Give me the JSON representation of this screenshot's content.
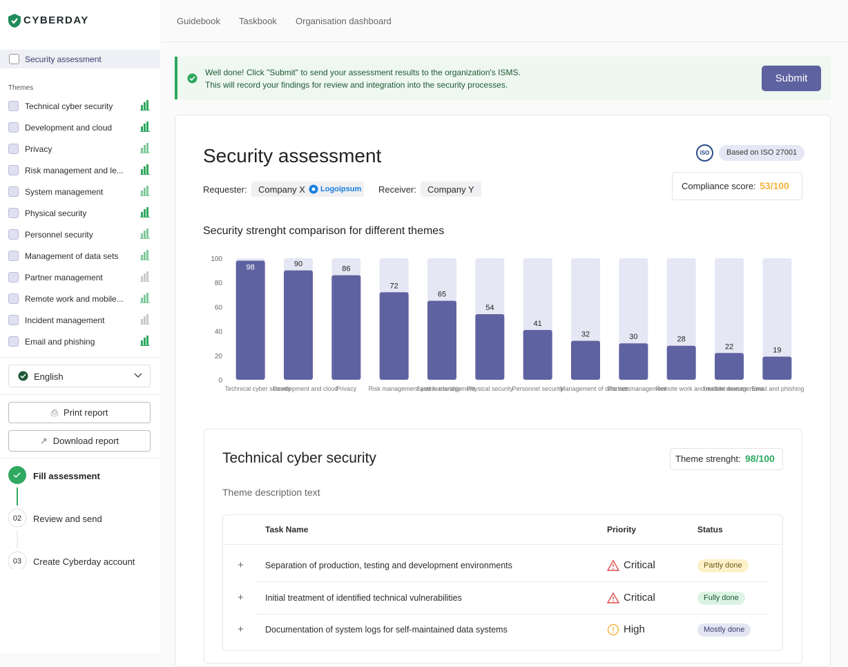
{
  "nav": {
    "logo": "CYBERDAY",
    "links": [
      "Guidebook",
      "Taskbook",
      "Organisation dashboard"
    ]
  },
  "sidebar": {
    "active": "Security assessment",
    "themes_label": "Themes",
    "themes": [
      "Technical cyber security",
      "Development and cloud",
      "Privacy",
      "Risk management and le...",
      "System management",
      "Physical security",
      "Personnel security",
      "Management of data sets",
      "Partner management",
      "Remote work and mobile...",
      "Incident management",
      "Email and phishing"
    ],
    "language": "English",
    "print": "Print report",
    "download": "Download report",
    "steps": [
      {
        "label": "Fill assessment"
      },
      {
        "number": "02",
        "label": "Review and send"
      },
      {
        "number": "03",
        "label": "Create Cyberday account"
      }
    ]
  },
  "banner": {
    "lines": [
      "Well done! Click \"Submit\" to send your assessment results to the organization's ISMS.",
      "This will record your findings for review and integration into the security processes."
    ],
    "button": "Submit"
  },
  "assessment": {
    "title": "Security assessment",
    "iso": "ISO",
    "badge": "Based on ISO 27001",
    "requester_label": "Requester:",
    "requester": "Company X",
    "requester_logo": "Logoipsum",
    "receiver_label": "Receiver:",
    "receiver": "Company Y",
    "compliance_label": "Compliance score:",
    "compliance_score": "53/100"
  },
  "chart_data": {
    "type": "bar",
    "title": "Security strenght comparison for different themes",
    "categories": [
      "Technical cyber security",
      "Development and cloud",
      "Privacy",
      "Risk management and leadership",
      "System management",
      "Physical security",
      "Personnel security",
      "Management of data sets",
      "Partner management",
      "Remote work and mobile devices",
      "Incident management",
      "Email and phishing"
    ],
    "values": [
      98,
      90,
      86,
      72,
      65,
      54,
      41,
      32,
      30,
      28,
      22,
      19
    ],
    "color": "#5f62a0",
    "track_color": "#e6e7f4",
    "ylim": [
      0,
      100
    ],
    "yticks": [
      0,
      20,
      40,
      60,
      80,
      100
    ]
  },
  "theme": {
    "title": "Technical cyber security",
    "strength_label": "Theme strenght:",
    "strength": "98/100",
    "description": "Theme description text",
    "table": {
      "headers": [
        "Task Name",
        "Priority",
        "Status"
      ],
      "rows": [
        [
          "Separation of production, testing and development environments",
          "Critical",
          "Partly done"
        ],
        [
          "Initial treatment of identified technical vulnerabilities",
          "Critical",
          "Fully done"
        ],
        [
          "Documentation of system logs for self-maintained data systems",
          "High",
          "Mostly done"
        ]
      ]
    }
  }
}
